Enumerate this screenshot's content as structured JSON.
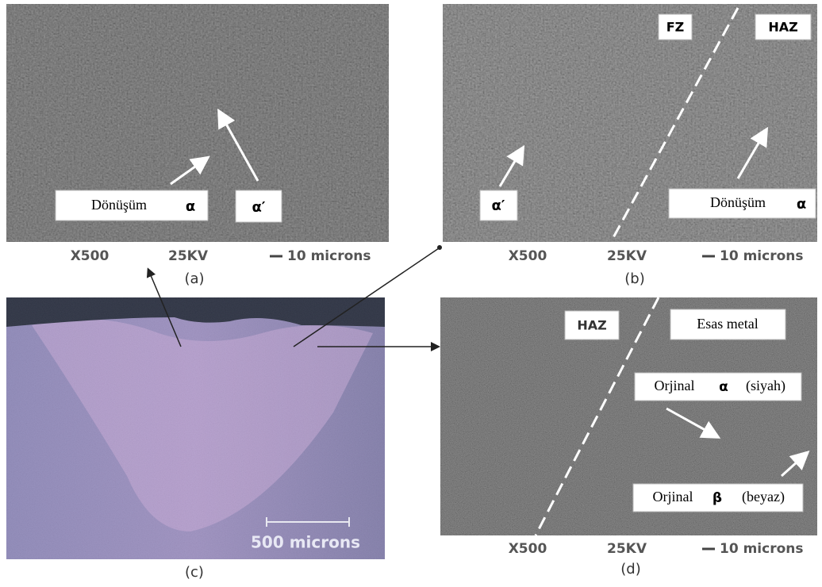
{
  "panel_a": {
    "labels": [
      "Dönüşüm",
      "α",
      "α′"
    ],
    "footer": [
      "X500",
      "25KV",
      "10 microns"
    ],
    "caption": "(a)"
  },
  "panel_b": {
    "labels": [
      "FZ",
      "HAZ",
      "α′",
      "Dönüşüm",
      "α"
    ],
    "footer": [
      "X500",
      "25KV",
      "10 microns"
    ],
    "caption": "(b)"
  },
  "panel_c": {
    "scale": "500 microns",
    "caption": "(c)"
  },
  "panel_d": {
    "labels": [
      "HAZ",
      "Esas metal",
      "Orjinal",
      "α",
      "(siyah)",
      "Orjinal",
      "β",
      "(beyaz)"
    ],
    "footer": [
      "X500",
      "25KV",
      "10 microns"
    ],
    "caption": "(d)"
  }
}
